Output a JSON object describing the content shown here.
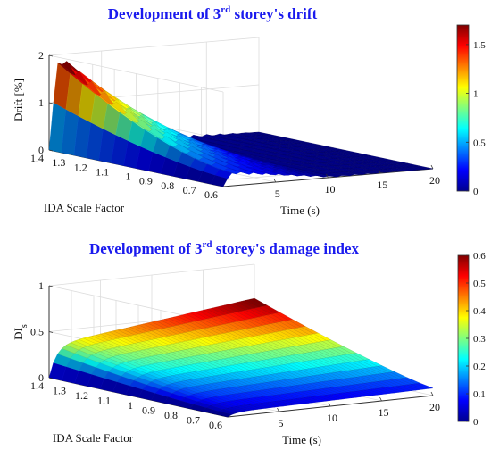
{
  "chart_data": [
    {
      "type": "surface",
      "title_pre": "Development of 3",
      "title_sup": "rd",
      "title_post": " storey's drift",
      "zlabel": "Drift [%]",
      "xlabel": "Time (s)",
      "ylabel": "IDA Scale Factor",
      "xlim": [
        0,
        20
      ],
      "ylim": [
        0.6,
        1.4
      ],
      "zlim": [
        0,
        2
      ],
      "xticks": [
        5,
        10,
        15,
        20
      ],
      "yticks": [
        1.4,
        1.3,
        1.2,
        1.1,
        1,
        0.9,
        0.8,
        0.7,
        0.6
      ],
      "zticks": [
        0,
        1,
        2
      ],
      "colorbar": {
        "range": [
          0,
          1.7
        ],
        "ticks": [
          0,
          0.5,
          1,
          1.5
        ],
        "colormap": "jet"
      },
      "peak_drift_at_scale_1_4": 1.85,
      "grid": true
    },
    {
      "type": "surface",
      "title_pre": "Development of 3",
      "title_sup": "rd",
      "title_post": " storey's damage index",
      "zlabel_main": "DI",
      "zlabel_sub": "s",
      "xlabel": "Time (s)",
      "ylabel": "IDA Scale Factor",
      "xlim": [
        0,
        20
      ],
      "ylim": [
        0.6,
        1.4
      ],
      "zlim": [
        0,
        1
      ],
      "xticks": [
        5,
        10,
        15,
        20
      ],
      "yticks": [
        1.4,
        1.3,
        1.2,
        1.1,
        1,
        0.9,
        0.8,
        0.7,
        0.6
      ],
      "zticks": [
        0,
        0.5,
        1
      ],
      "colorbar": {
        "range": [
          0,
          0.6
        ],
        "ticks": [
          0,
          0.1,
          0.2,
          0.3,
          0.4,
          0.5,
          0.6
        ],
        "colormap": "jet"
      },
      "max_damage_index_at_scale_1_4": 0.62,
      "grid": true
    }
  ]
}
